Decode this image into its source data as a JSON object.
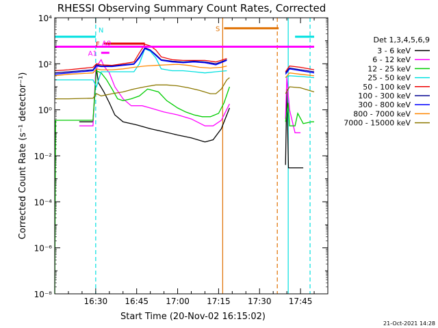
{
  "chart_data": {
    "type": "line",
    "title": "RHESSI Observing Summary Count Rates, Corrected",
    "xlabel": "Start Time (20-Nov-02 16:15:02)",
    "ylabel": "Corrected Count Rate (s⁻¹ detector⁻¹)",
    "ylog": true,
    "xlim_min": [
      15,
      115
    ],
    "ylim": [
      1e-08,
      10000
    ],
    "x_ticks": [
      {
        "t": 30,
        "label": "16:30"
      },
      {
        "t": 45,
        "label": "16:45"
      },
      {
        "t": 60,
        "label": "17:00"
      },
      {
        "t": 75,
        "label": "17:15"
      },
      {
        "t": 90,
        "label": "17:30"
      },
      {
        "t": 105,
        "label": "17:45"
      }
    ],
    "y_ticks": [
      {
        "v": 1e-08,
        "label": "10⁻⁸"
      },
      {
        "v": 1e-06,
        "label": "10⁻⁶"
      },
      {
        "v": 0.0001,
        "label": "10⁻⁴"
      },
      {
        "v": 0.01,
        "label": "10⁻²"
      },
      {
        "v": 1,
        "label": "10⁰"
      },
      {
        "v": 100,
        "label": "10²"
      },
      {
        "v": 10000,
        "label": "10⁴"
      }
    ],
    "legend_title": "Det 1,3,4,5,6,9",
    "legend_position": "right",
    "timestamp": "21-Oct-2021 14:28",
    "flags": [
      {
        "label": "N",
        "color": "#00e0e0",
        "segments": [
          [
            15,
            30
          ],
          [
            103,
            110
          ]
        ],
        "y": 1500
      },
      {
        "label": "F",
        "color": "#e00000",
        "segments": [
          [
            33,
            48
          ]
        ],
        "y": 750
      },
      {
        "label": "A0",
        "color": "#ff00ff",
        "segments": [
          [
            15,
            110
          ]
        ],
        "y": 550
      },
      {
        "label": "A1",
        "color": "#ff00ff",
        "segments": [
          [
            32,
            35
          ]
        ],
        "y": 300
      },
      {
        "label": "S",
        "color": "#e07000",
        "segments": [
          [
            77,
            97
          ]
        ],
        "y": 3500
      }
    ],
    "vertical_lines": [
      {
        "t": 30,
        "color": "#00e0e0",
        "style": "dashed"
      },
      {
        "t": 76.5,
        "color": "#e07000",
        "style": "solid"
      },
      {
        "t": 96.5,
        "color": "#e07000",
        "style": "dashed"
      },
      {
        "t": 100.5,
        "color": "#00e0e0",
        "style": "solid"
      },
      {
        "t": 108.5,
        "color": "#00e0e0",
        "style": "dashed"
      }
    ],
    "series": [
      {
        "name": "3 - 6 keV",
        "color": "#000000",
        "points": [
          [
            24,
            0.3
          ],
          [
            29,
            0.3
          ],
          [
            30.3,
            60
          ],
          [
            31,
            15
          ],
          [
            33,
            6
          ],
          [
            35,
            2
          ],
          [
            37,
            0.6
          ],
          [
            40,
            0.3
          ],
          [
            45,
            0.22
          ],
          [
            50,
            0.15
          ],
          [
            55,
            0.11
          ],
          [
            60,
            0.08
          ],
          [
            65,
            0.06
          ],
          [
            70,
            0.04
          ],
          [
            73,
            0.05
          ],
          [
            76,
            0.15
          ],
          [
            79,
            1.2
          ],
          [
            80,
            null
          ],
          [
            99.5,
            0.004
          ],
          [
            100,
            8
          ],
          [
            100.6,
            0.003
          ],
          [
            103,
            0.003
          ],
          [
            106,
            0.003
          ]
        ]
      },
      {
        "name": "6 - 12 keV",
        "color": "#ff00ff",
        "points": [
          [
            24,
            0.2
          ],
          [
            29,
            0.2
          ],
          [
            30,
            50
          ],
          [
            31,
            100
          ],
          [
            32,
            150
          ],
          [
            33,
            80
          ],
          [
            35,
            40
          ],
          [
            37,
            10
          ],
          [
            40,
            3
          ],
          [
            43,
            1.5
          ],
          [
            47,
            1.5
          ],
          [
            50,
            1.2
          ],
          [
            55,
            0.8
          ],
          [
            60,
            0.6
          ],
          [
            65,
            0.4
          ],
          [
            70,
            0.2
          ],
          [
            73,
            0.2
          ],
          [
            76,
            0.35
          ],
          [
            79,
            1.8
          ],
          [
            80,
            null
          ],
          [
            99.5,
            0.4
          ],
          [
            100,
            25
          ],
          [
            101,
            1
          ],
          [
            103,
            0.1
          ],
          [
            105,
            0.1
          ]
        ]
      },
      {
        "name": "12 - 25 keV",
        "color": "#00cc00",
        "points": [
          [
            15,
            1e-08
          ],
          [
            15.3,
            0.35
          ],
          [
            20,
            0.35
          ],
          [
            25,
            0.35
          ],
          [
            29,
            0.35
          ],
          [
            30.2,
            50
          ],
          [
            32,
            40
          ],
          [
            34,
            20
          ],
          [
            36,
            8
          ],
          [
            38,
            3
          ],
          [
            40,
            2.5
          ],
          [
            43,
            3
          ],
          [
            46,
            4
          ],
          [
            49,
            8
          ],
          [
            53,
            6
          ],
          [
            56,
            2.5
          ],
          [
            60,
            1.2
          ],
          [
            63,
            0.8
          ],
          [
            66,
            0.6
          ],
          [
            69,
            0.5
          ],
          [
            72,
            0.5
          ],
          [
            75,
            0.7
          ],
          [
            77,
            2
          ],
          [
            79,
            10
          ],
          [
            80,
            null
          ],
          [
            99.5,
            0.3
          ],
          [
            100.5,
            2
          ],
          [
            101,
            0.2
          ],
          [
            103,
            0.2
          ],
          [
            104,
            0.7
          ],
          [
            106,
            0.25
          ],
          [
            109,
            0.3
          ],
          [
            110,
            0.3
          ]
        ]
      },
      {
        "name": "25 - 50 keV",
        "color": "#00e0e0",
        "points": [
          [
            15,
            20
          ],
          [
            20,
            20
          ],
          [
            29,
            20
          ],
          [
            30.3,
            10
          ],
          [
            32,
            45
          ],
          [
            35,
            45
          ],
          [
            40,
            45
          ],
          [
            44,
            45
          ],
          [
            46,
            100
          ],
          [
            48,
            450
          ],
          [
            50,
            350
          ],
          [
            52,
            180
          ],
          [
            54,
            60
          ],
          [
            58,
            50
          ],
          [
            62,
            50
          ],
          [
            66,
            45
          ],
          [
            70,
            40
          ],
          [
            74,
            45
          ],
          [
            78,
            50
          ],
          [
            80,
            null
          ],
          [
            99.5,
            25
          ],
          [
            101,
            30
          ],
          [
            105,
            28
          ],
          [
            110,
            25
          ]
        ]
      },
      {
        "name": "50 - 100 keV",
        "color": "#ee0000",
        "points": [
          [
            15,
            50
          ],
          [
            20,
            55
          ],
          [
            29,
            70
          ],
          [
            30.3,
            100
          ],
          [
            32,
            90
          ],
          [
            36,
            85
          ],
          [
            40,
            100
          ],
          [
            44,
            120
          ],
          [
            46,
            300
          ],
          [
            48,
            700
          ],
          [
            50,
            600
          ],
          [
            52,
            400
          ],
          [
            54,
            200
          ],
          [
            58,
            150
          ],
          [
            62,
            140
          ],
          [
            66,
            140
          ],
          [
            70,
            140
          ],
          [
            74,
            120
          ],
          [
            78,
            170
          ],
          [
            80,
            null
          ],
          [
            99.5,
            45
          ],
          [
            101,
            80
          ],
          [
            105,
            70
          ],
          [
            110,
            55
          ]
        ]
      },
      {
        "name": "100 - 300 keV",
        "color": "#000090",
        "points": [
          [
            15,
            40
          ],
          [
            20,
            45
          ],
          [
            29,
            55
          ],
          [
            30.3,
            90
          ],
          [
            32,
            80
          ],
          [
            36,
            80
          ],
          [
            40,
            90
          ],
          [
            44,
            100
          ],
          [
            46,
            200
          ],
          [
            48,
            500
          ],
          [
            50,
            400
          ],
          [
            52,
            250
          ],
          [
            54,
            150
          ],
          [
            58,
            130
          ],
          [
            62,
            120
          ],
          [
            66,
            130
          ],
          [
            70,
            120
          ],
          [
            74,
            100
          ],
          [
            78,
            150
          ],
          [
            80,
            null
          ],
          [
            99.5,
            40
          ],
          [
            101,
            65
          ],
          [
            105,
            55
          ],
          [
            110,
            45
          ]
        ]
      },
      {
        "name": "300 - 800 keV",
        "color": "#0000ff",
        "points": [
          [
            15,
            35
          ],
          [
            20,
            40
          ],
          [
            29,
            50
          ],
          [
            30.3,
            80
          ],
          [
            32,
            75
          ],
          [
            36,
            75
          ],
          [
            40,
            85
          ],
          [
            44,
            95
          ],
          [
            46,
            180
          ],
          [
            48,
            450
          ],
          [
            50,
            380
          ],
          [
            52,
            230
          ],
          [
            54,
            140
          ],
          [
            58,
            120
          ],
          [
            62,
            110
          ],
          [
            66,
            120
          ],
          [
            70,
            110
          ],
          [
            74,
            90
          ],
          [
            78,
            140
          ],
          [
            80,
            null
          ],
          [
            99.5,
            35
          ],
          [
            101,
            60
          ],
          [
            105,
            50
          ],
          [
            110,
            40
          ]
        ]
      },
      {
        "name": "800 - 7000 keV",
        "color": "#ff8800",
        "points": [
          [
            15,
            30
          ],
          [
            20,
            35
          ],
          [
            29,
            40
          ],
          [
            30.3,
            60
          ],
          [
            32,
            55
          ],
          [
            36,
            55
          ],
          [
            40,
            60
          ],
          [
            44,
            70
          ],
          [
            48,
            80
          ],
          [
            52,
            85
          ],
          [
            56,
            90
          ],
          [
            60,
            95
          ],
          [
            64,
            85
          ],
          [
            68,
            70
          ],
          [
            72,
            65
          ],
          [
            76,
            70
          ],
          [
            78,
            80
          ],
          [
            80,
            null
          ],
          [
            99.5,
            25
          ],
          [
            101,
            40
          ],
          [
            105,
            35
          ],
          [
            110,
            30
          ]
        ]
      },
      {
        "name": "7000 - 15000 keV",
        "color": "#8c7800",
        "points": [
          [
            15,
            3
          ],
          [
            20,
            3
          ],
          [
            29,
            3.2
          ],
          [
            30.3,
            5
          ],
          [
            32,
            4
          ],
          [
            36,
            5
          ],
          [
            40,
            6
          ],
          [
            44,
            8
          ],
          [
            48,
            10
          ],
          [
            52,
            12
          ],
          [
            56,
            12
          ],
          [
            60,
            11
          ],
          [
            64,
            9
          ],
          [
            68,
            7
          ],
          [
            72,
            5
          ],
          [
            74,
            5
          ],
          [
            76,
            8
          ],
          [
            78,
            20
          ],
          [
            79,
            25
          ],
          [
            80,
            null
          ],
          [
            99.5,
            5
          ],
          [
            101,
            10
          ],
          [
            105,
            9
          ],
          [
            110,
            6
          ]
        ]
      }
    ]
  }
}
